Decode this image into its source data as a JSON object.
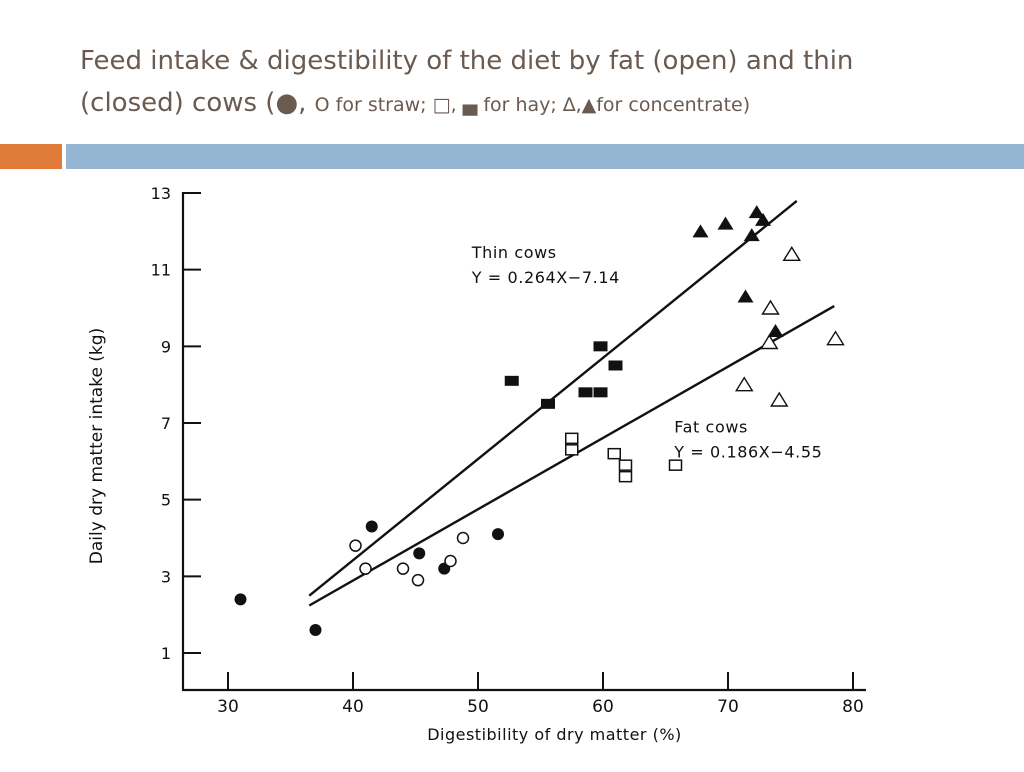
{
  "slide": {
    "title_line1": "Feed intake & digestibility of the diet by fat (open) and thin",
    "title_line2_a": "(closed) cows (",
    "title_line2_b": "●, ",
    "title_line2_c": "O for straw; □, ",
    "title_line2_d": "▄",
    "title_line2_e": " for hay; ∆,▲for concentrate)",
    "accent_colors": {
      "orange": "#e07b39",
      "blue": "#94b6d2",
      "title": "#6b5a4f"
    }
  },
  "chart_data": {
    "type": "scatter",
    "xlabel": "Digestibility of dry matter (%)",
    "ylabel": "Daily dry matter intake (kg)",
    "xlim": [
      25,
      80
    ],
    "ylim": [
      0,
      13
    ],
    "xticks": [
      30,
      40,
      50,
      60,
      70,
      80
    ],
    "yticks": [
      1,
      3,
      5,
      7,
      9,
      11,
      13
    ],
    "grid": false,
    "series": [
      {
        "marker": "filled-circle",
        "points": [
          [
            31,
            2.4
          ],
          [
            37,
            1.6
          ],
          [
            41.5,
            4.3
          ],
          [
            45.3,
            3.6
          ],
          [
            47.3,
            3.2
          ],
          [
            51.6,
            4.1
          ]
        ]
      },
      {
        "marker": "open-circle",
        "points": [
          [
            40.2,
            3.8
          ],
          [
            41,
            3.2
          ],
          [
            44,
            3.2
          ],
          [
            45.2,
            2.9
          ],
          [
            47.8,
            3.4
          ],
          [
            48.8,
            4.0
          ]
        ]
      },
      {
        "marker": "filled-square",
        "points": [
          [
            52.7,
            8.1
          ],
          [
            55.6,
            7.5
          ],
          [
            58.6,
            7.8
          ],
          [
            59.8,
            7.8
          ],
          [
            59.8,
            9.0
          ],
          [
            61,
            8.5
          ]
        ]
      },
      {
        "marker": "open-square",
        "points": [
          [
            57.5,
            6.6
          ],
          [
            57.5,
            6.3
          ],
          [
            60.9,
            6.2
          ],
          [
            61.8,
            5.9
          ],
          [
            61.8,
            5.6
          ],
          [
            65.8,
            5.9
          ]
        ]
      },
      {
        "marker": "filled-triangle",
        "points": [
          [
            67.8,
            12.0
          ],
          [
            69.8,
            12.2
          ],
          [
            71.4,
            10.3
          ],
          [
            71.9,
            11.9
          ],
          [
            72.3,
            12.5
          ],
          [
            72.8,
            12.3
          ],
          [
            73.8,
            9.4
          ]
        ]
      },
      {
        "marker": "open-triangle",
        "points": [
          [
            71.3,
            8.0
          ],
          [
            73.3,
            9.1
          ],
          [
            73.4,
            10.0
          ],
          [
            74.1,
            7.6
          ],
          [
            75.1,
            11.4
          ],
          [
            78.6,
            9.2
          ]
        ]
      }
    ],
    "lines": [
      {
        "name": "Thin cows",
        "equation": "Y = 0.264X−7.14",
        "slope": 0.264,
        "intercept": -7.14,
        "x_range": [
          36.5,
          75.5
        ]
      },
      {
        "name": "Fat cows",
        "equation": "Y = 0.186X−4.55",
        "slope": 0.186,
        "intercept": -4.55,
        "x_range": [
          36.5,
          78.5
        ]
      }
    ],
    "annotations": [
      {
        "text": "Thin cows",
        "at": [
          49.5,
          11.3
        ]
      },
      {
        "text": "Y = 0.264X−7.14",
        "at": [
          49.5,
          10.65
        ]
      },
      {
        "text": "Fat cows",
        "at": [
          65.7,
          6.75
        ]
      },
      {
        "text": "Y = 0.186X−4.55",
        "at": [
          65.7,
          6.1
        ]
      }
    ]
  }
}
